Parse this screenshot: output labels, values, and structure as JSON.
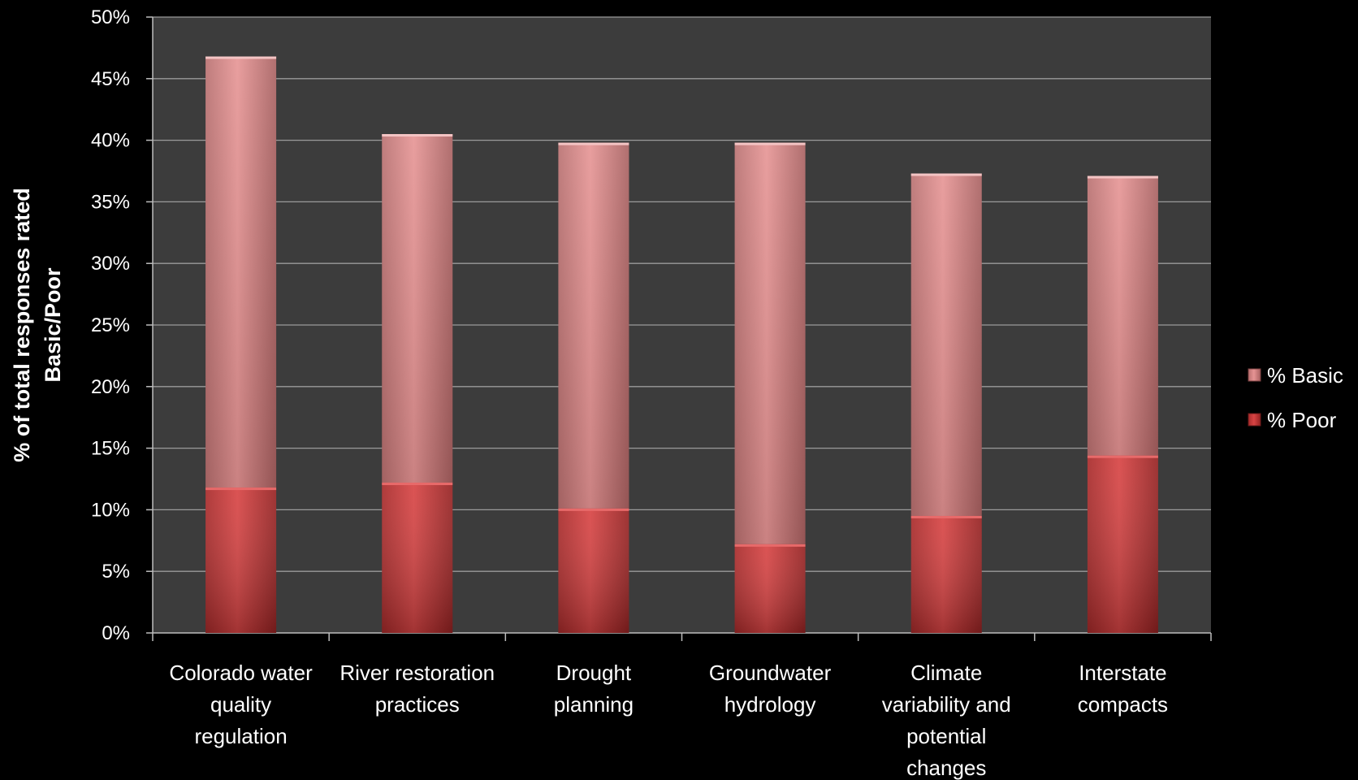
{
  "chart_data": {
    "type": "bar",
    "stacked": true,
    "title": "",
    "xlabel": "",
    "ylabel": "% of total responses rated Basic/Poor",
    "ylabel_lines": [
      "% of total responses rated",
      "Basic/Poor"
    ],
    "ylim": [
      0,
      50
    ],
    "yticks": [
      0,
      5,
      10,
      15,
      20,
      25,
      30,
      35,
      40,
      45,
      50
    ],
    "ytick_labels": [
      "0%",
      "5%",
      "10%",
      "15%",
      "20%",
      "25%",
      "30%",
      "35%",
      "40%",
      "45%",
      "50%"
    ],
    "grid": true,
    "legend_position": "right",
    "categories": [
      "Colorado water quality regulation",
      "River restoration practices",
      "Drought planning",
      "Groundwater hydrology",
      "Climate variability and potential changes",
      "Interstate compacts"
    ],
    "category_label_lines": [
      [
        "Colorado water",
        "quality",
        "regulation"
      ],
      [
        "River restoration",
        "practices"
      ],
      [
        "Drought",
        "planning"
      ],
      [
        "Groundwater",
        "hydrology"
      ],
      [
        "Climate",
        "variability and",
        "potential",
        "changes"
      ],
      [
        "Interstate",
        "compacts"
      ]
    ],
    "series": [
      {
        "name": "% Poor",
        "color": "#c83a3a",
        "values": [
          11.8,
          12.2,
          10.1,
          7.2,
          9.5,
          14.4
        ]
      },
      {
        "name": "% Basic",
        "color": "#e08a8a",
        "values": [
          35.0,
          28.3,
          29.7,
          32.6,
          27.8,
          22.7
        ]
      }
    ],
    "legend": [
      "% Basic",
      "% Poor"
    ],
    "colors": {
      "background": "#000000",
      "plot_area": "#3c3c3c",
      "gridline": "#9a9a9a",
      "text": "#ffffff"
    }
  }
}
